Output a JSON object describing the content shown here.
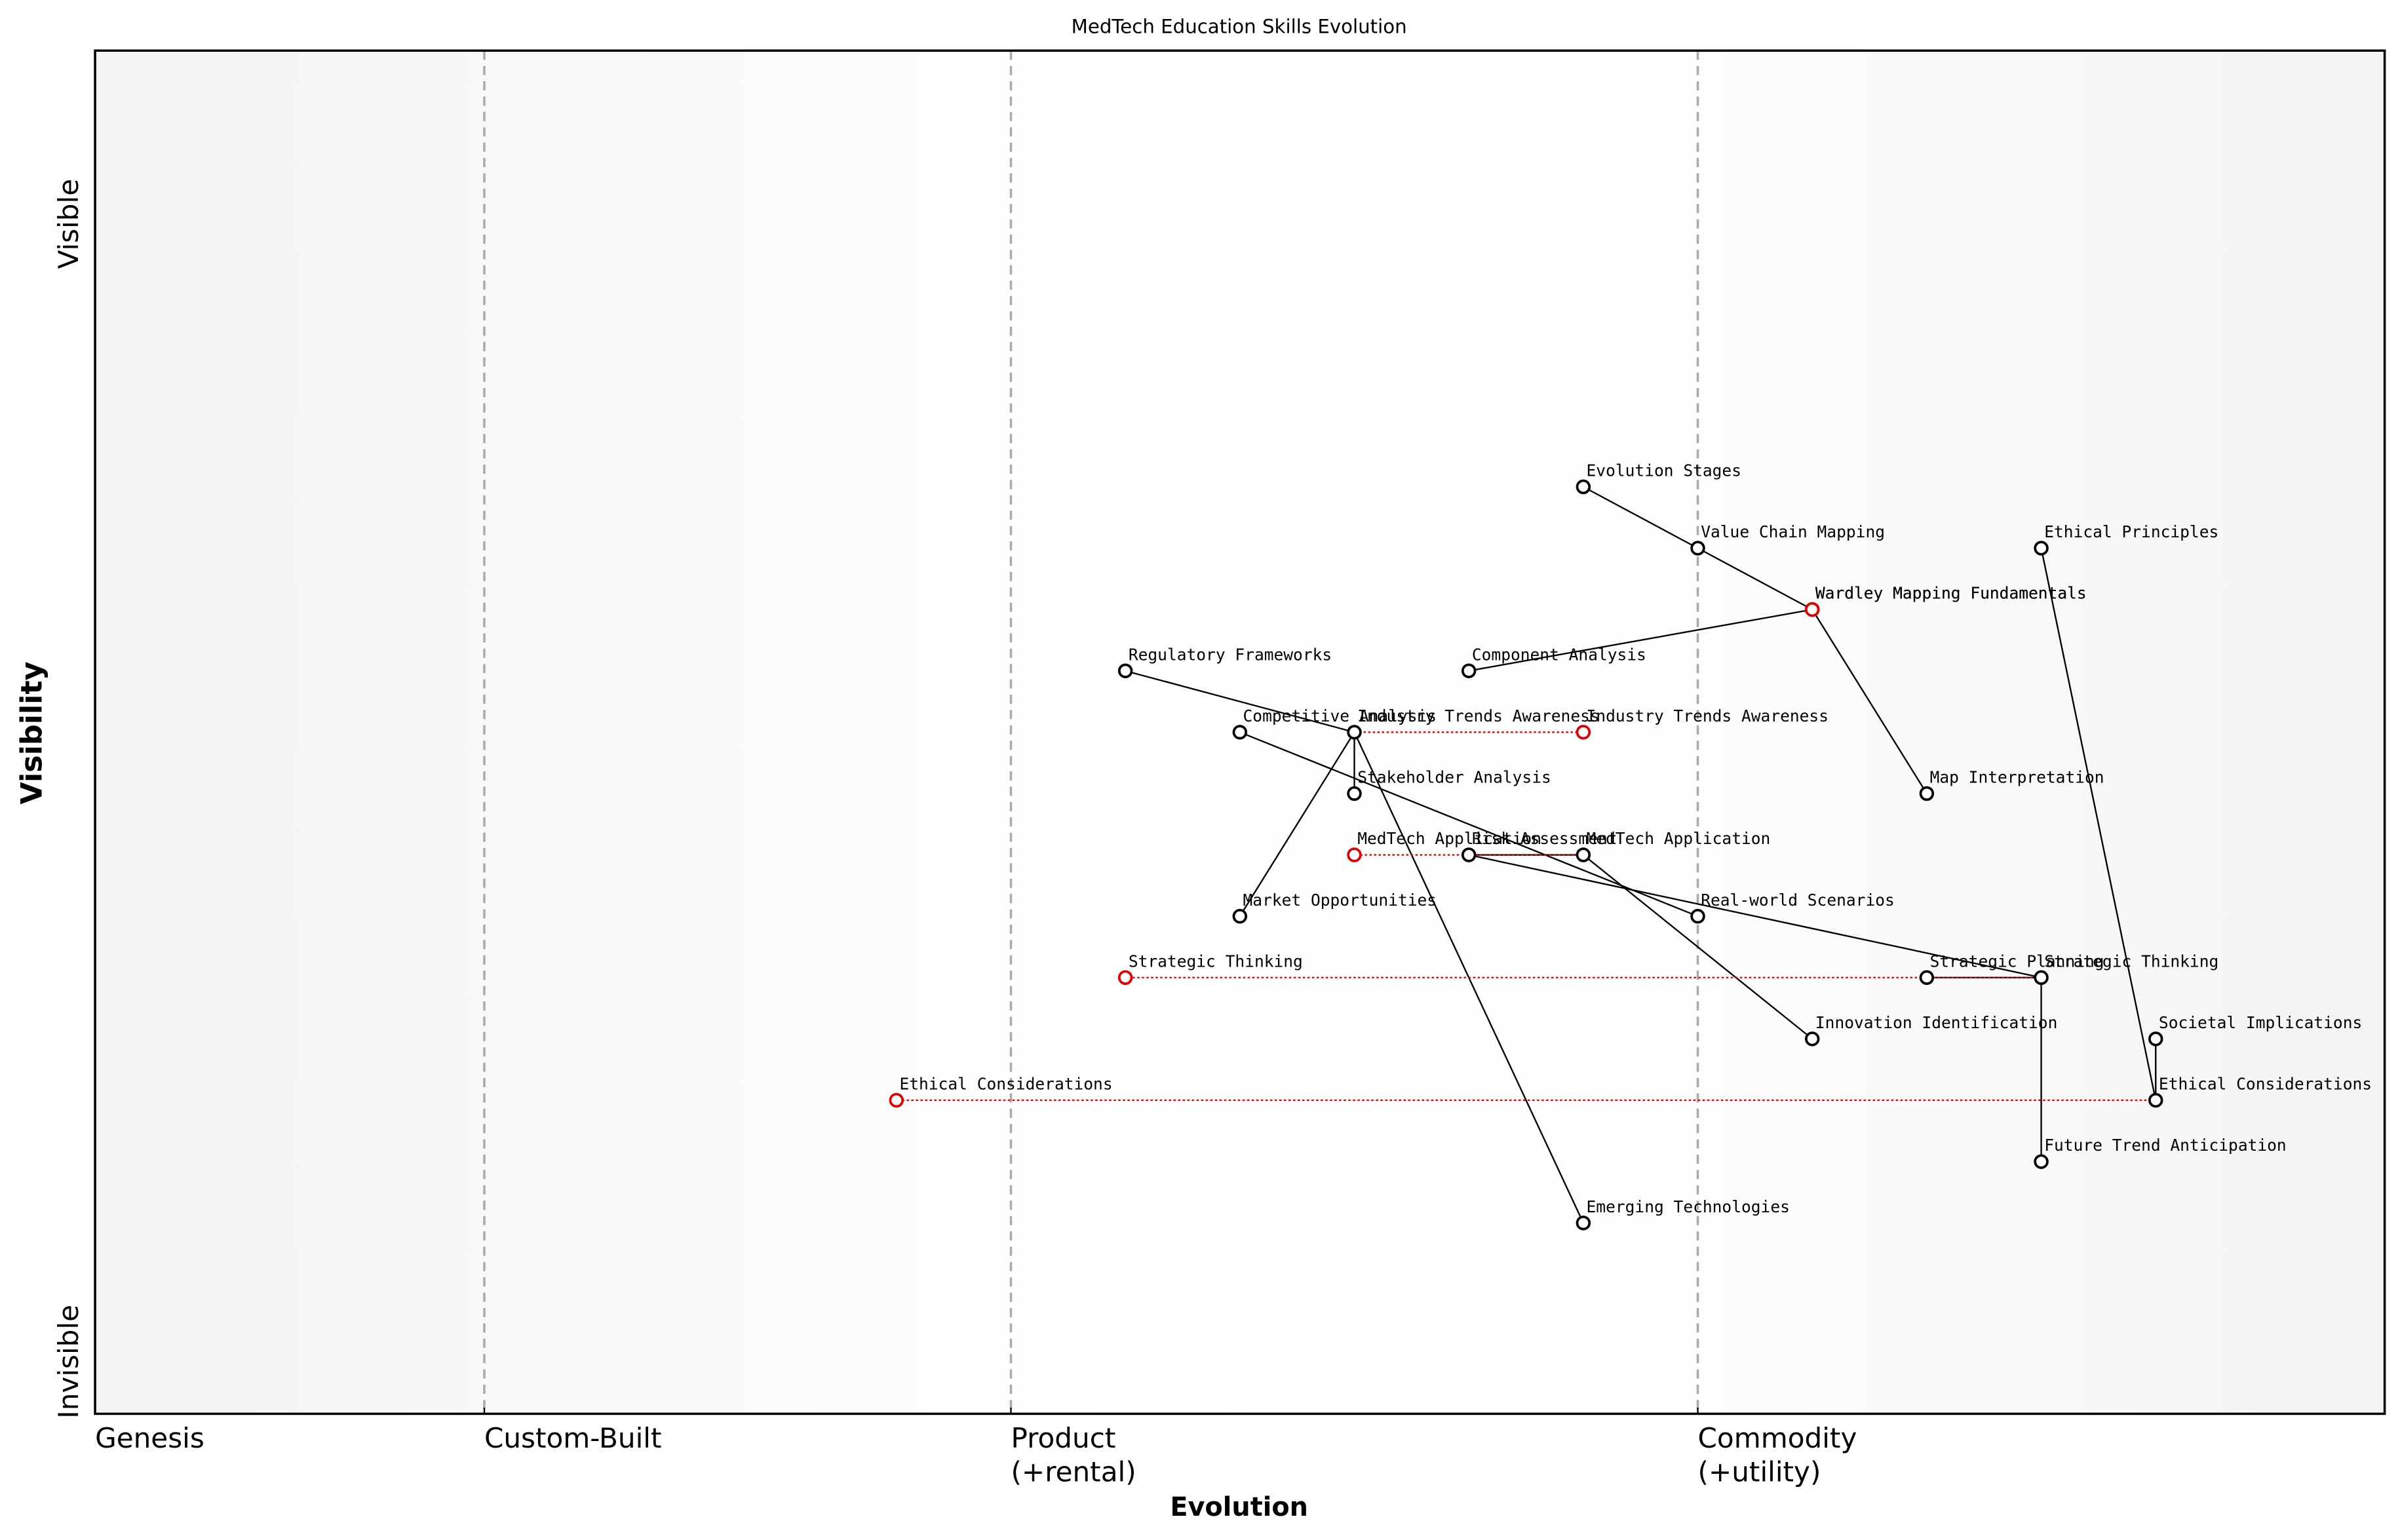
{
  "chart_data": {
    "type": "wardley",
    "title": "MedTech Education Skills Evolution",
    "xlabel": "Evolution",
    "ylabel": "Visibility",
    "y_top_label": "Visible",
    "y_bottom_label": "Invisible",
    "xlim": [
      0,
      1
    ],
    "ylim": [
      0,
      1
    ],
    "xticks": [
      {
        "value": 0,
        "label": "Genesis"
      },
      {
        "value": 0.17,
        "label": "Custom-Built"
      },
      {
        "value": 0.4,
        "label": "Product\n(+rental)"
      },
      {
        "value": 0.7,
        "label": "Commodity\n(+utility)"
      }
    ],
    "node_color": "#000000",
    "evolve_color": "#e00000",
    "nodes": [
      {
        "name": "Evolution Stages",
        "x": 0.65,
        "y": 0.68
      },
      {
        "name": "Value Chain Mapping",
        "x": 0.7,
        "y": 0.635
      },
      {
        "name": "Ethical Principles",
        "x": 0.85,
        "y": 0.635
      },
      {
        "name": "Wardley Mapping Fundamentals",
        "x": 0.75,
        "y": 0.59
      },
      {
        "name": "Regulatory Frameworks",
        "x": 0.45,
        "y": 0.545
      },
      {
        "name": "Component Analysis",
        "x": 0.6,
        "y": 0.545
      },
      {
        "name": "Competitive Analysis",
        "x": 0.5,
        "y": 0.5
      },
      {
        "name": "Industry Trends Awareness",
        "x": 0.55,
        "y": 0.5
      },
      {
        "name": "Stakeholder Analysis",
        "x": 0.55,
        "y": 0.455
      },
      {
        "name": "Map Interpretation",
        "x": 0.8,
        "y": 0.455
      },
      {
        "name": "Risk Assessment",
        "x": 0.6,
        "y": 0.41
      },
      {
        "name": "MedTech Application",
        "x": 0.65,
        "y": 0.41
      },
      {
        "name": "Market Opportunities",
        "x": 0.5,
        "y": 0.365
      },
      {
        "name": "Real-world Scenarios",
        "x": 0.7,
        "y": 0.365
      },
      {
        "name": "Strategic Planning",
        "x": 0.8,
        "y": 0.32
      },
      {
        "name": "Strategic Thinking",
        "x": 0.85,
        "y": 0.32
      },
      {
        "name": "Innovation Identification",
        "x": 0.75,
        "y": 0.275
      },
      {
        "name": "Societal Implications",
        "x": 0.9,
        "y": 0.275
      },
      {
        "name": "Ethical Considerations",
        "x": 0.9,
        "y": 0.23
      },
      {
        "name": "Future Trend Anticipation",
        "x": 0.85,
        "y": 0.185
      },
      {
        "name": "Emerging Technologies",
        "x": 0.65,
        "y": 0.14
      }
    ],
    "evolutions": [
      {
        "name": "Wardley Mapping Fundamentals",
        "x": 0.75,
        "y": 0.59
      },
      {
        "name": "Industry Trends Awareness",
        "x": 0.65,
        "y": 0.5
      },
      {
        "name": "MedTech Application",
        "x": 0.55,
        "y": 0.41
      },
      {
        "name": "Strategic Thinking",
        "x": 0.45,
        "y": 0.32
      },
      {
        "name": "Ethical Considerations",
        "x": 0.35,
        "y": 0.23
      }
    ],
    "links": [
      [
        "Evolution Stages",
        "Value Chain Mapping"
      ],
      [
        "Value Chain Mapping",
        "Wardley Mapping Fundamentals"
      ],
      [
        "Component Analysis",
        "Wardley Mapping Fundamentals"
      ],
      [
        "Wardley Mapping Fundamentals",
        "Map Interpretation"
      ],
      [
        "Ethical Principles",
        "Ethical Considerations"
      ],
      [
        "Regulatory Frameworks",
        "Industry Trends Awareness"
      ],
      [
        "Industry Trends Awareness",
        "Stakeholder Analysis"
      ],
      [
        "Industry Trends Awareness",
        "Market Opportunities"
      ],
      [
        "Industry Trends Awareness",
        "Emerging Technologies"
      ],
      [
        "Competitive Analysis",
        "Real-world Scenarios"
      ],
      [
        "Risk Assessment",
        "Strategic Thinking"
      ],
      [
        "Risk Assessment",
        "MedTech Application"
      ],
      [
        "MedTech Application",
        "Innovation Identification"
      ],
      [
        "Strategic Planning",
        "Strategic Thinking"
      ],
      [
        "Strategic Thinking",
        "Future Trend Anticipation"
      ],
      [
        "Societal Implications",
        "Ethical Considerations"
      ]
    ]
  }
}
